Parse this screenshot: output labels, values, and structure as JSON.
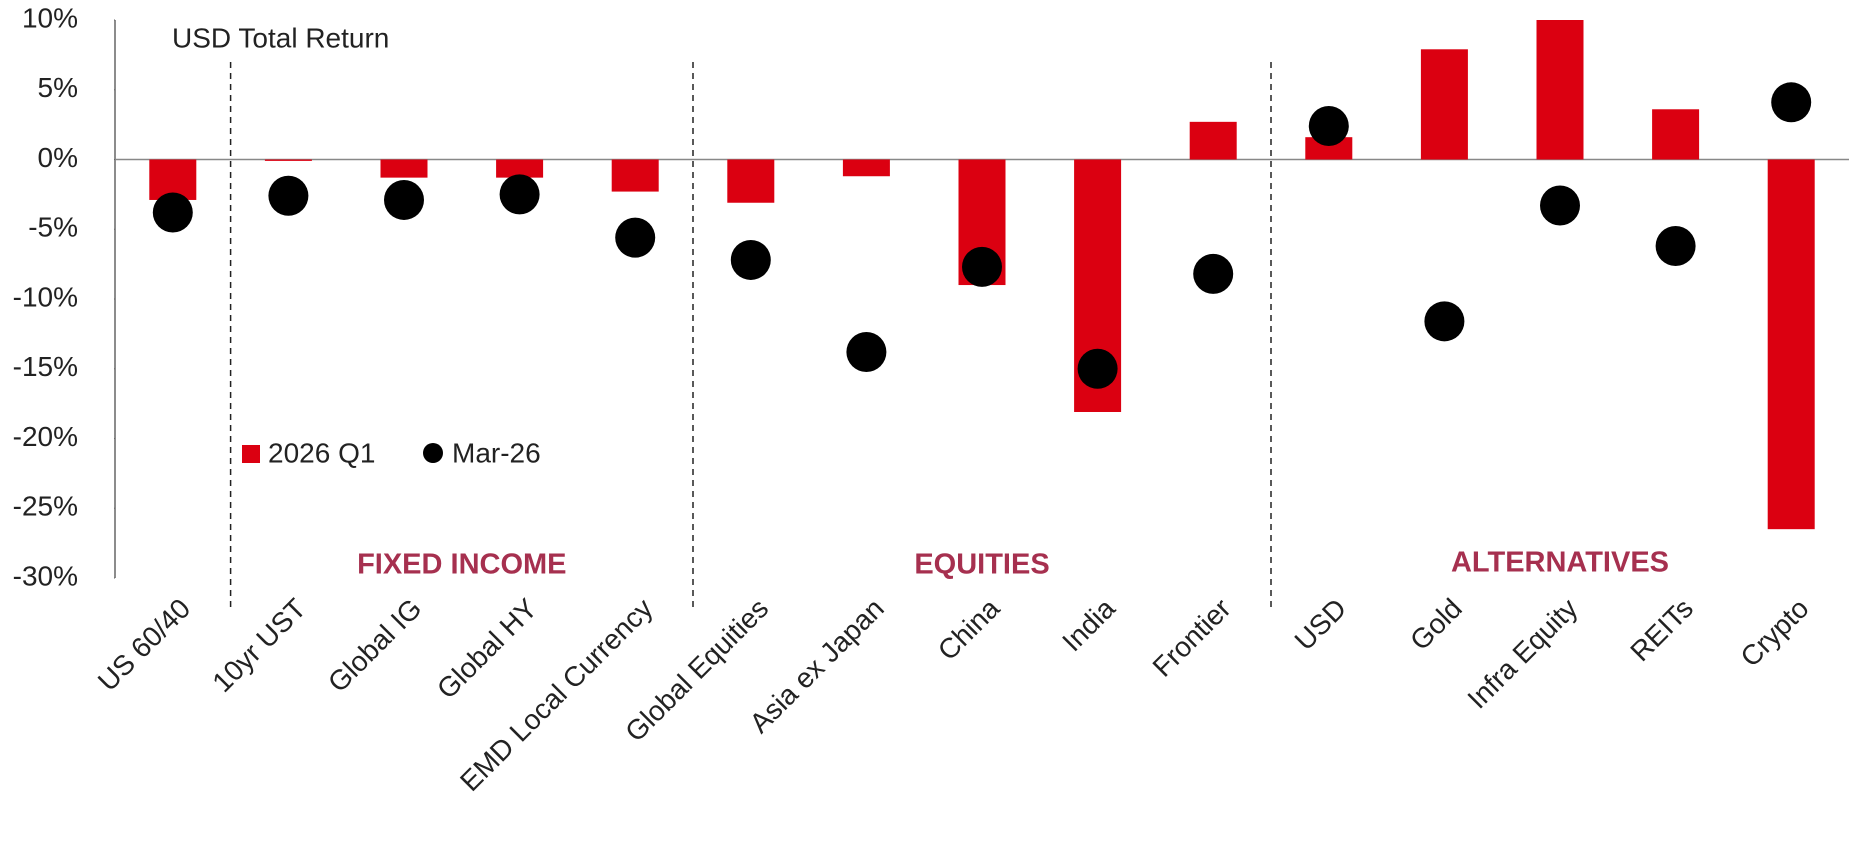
{
  "chart_data": {
    "type": "bar_dot",
    "annotation": "USD Total Return",
    "categories": [
      "US 60/40",
      "10yr UST",
      "Global IG",
      "Global HY",
      "EMD Local Currency",
      "Global Equities",
      "Asia ex Japan",
      "China",
      "India",
      "Frontier",
      "USD",
      "Gold",
      "Infra Equity",
      "REITs",
      "Crypto"
    ],
    "series": [
      {
        "name": "2026 Q1",
        "color": "#db0011",
        "values": [
          -2.9,
          -0.1,
          -1.3,
          -1.3,
          -2.3,
          -3.1,
          -1.2,
          -9.0,
          -18.1,
          2.7,
          1.6,
          7.9,
          10.0,
          3.6,
          -26.5
        ]
      },
      {
        "name": "Mar-26",
        "color": "#000000",
        "values": [
          -3.8,
          -2.6,
          -2.9,
          -2.5,
          -5.6,
          -7.2,
          -13.8,
          -7.7,
          -15.0,
          -8.2,
          2.4,
          -11.6,
          -3.3,
          -6.2,
          4.1
        ]
      }
    ],
    "sections": [
      "FIXED INCOME",
      "EQUITIES",
      "ALTERNATIVES"
    ],
    "section_color": "#a6304f",
    "ylim": [
      -30,
      10
    ],
    "yticks": [
      {
        "value": 10,
        "label": "10%"
      },
      {
        "value": 5,
        "label": "5%"
      },
      {
        "value": 0,
        "label": "0%"
      },
      {
        "value": -5,
        "label": "-5%"
      },
      {
        "value": -10,
        "label": "-10%"
      },
      {
        "value": -15,
        "label": "-15%"
      },
      {
        "value": -20,
        "label": "-20%"
      },
      {
        "value": -25,
        "label": "-25%"
      },
      {
        "value": -30,
        "label": "-30%"
      }
    ]
  }
}
